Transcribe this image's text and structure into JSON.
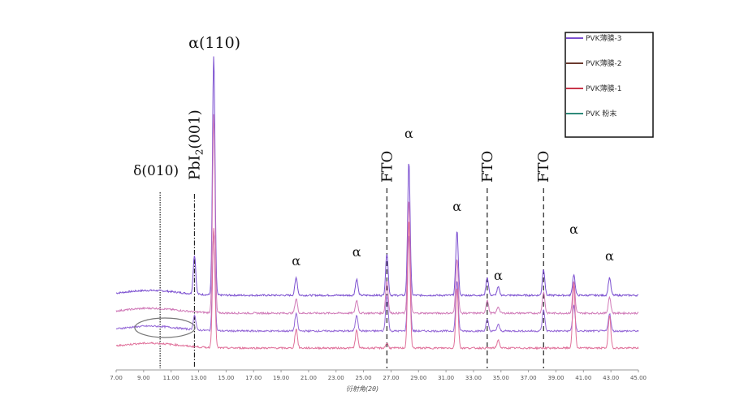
{
  "chart_data": {
    "type": "line",
    "title": "",
    "xlabel": "衍射角(2θ)",
    "ylabel": "",
    "xlim": [
      7,
      45
    ],
    "xticks": [
      "7.00",
      "9.00",
      "11.00",
      "13.00",
      "15.00",
      "17.00",
      "19.00",
      "21.00",
      "23.00",
      "25.00",
      "27.00",
      "29.00",
      "31.00",
      "33.00",
      "35.00",
      "37.00",
      "39.00",
      "41.00",
      "43.00",
      "45.00"
    ],
    "grid": false,
    "legend_position": "top-right",
    "series": [
      {
        "name": "PVK薄膜-3",
        "color": "#7b4fd0",
        "offset": 3,
        "peaks": [
          [
            12.7,
            48
          ],
          [
            14.1,
            295
          ],
          [
            20.1,
            22
          ],
          [
            24.5,
            20
          ],
          [
            26.7,
            52
          ],
          [
            28.3,
            165
          ],
          [
            31.8,
            80
          ],
          [
            34.0,
            22
          ],
          [
            34.8,
            10
          ],
          [
            38.1,
            32
          ],
          [
            40.3,
            26
          ],
          [
            42.9,
            22
          ]
        ]
      },
      {
        "name": "PVK薄膜-2",
        "color": "#d07ab8",
        "offset": 2,
        "peaks": [
          [
            14.1,
            245
          ],
          [
            20.1,
            18
          ],
          [
            24.5,
            16
          ],
          [
            26.7,
            40
          ],
          [
            28.3,
            140
          ],
          [
            31.8,
            68
          ],
          [
            34.0,
            16
          ],
          [
            34.8,
            8
          ],
          [
            38.1,
            26
          ],
          [
            40.3,
            40
          ],
          [
            42.9,
            20
          ]
        ]
      },
      {
        "name": "PVK薄膜-1",
        "color": "#9467d6",
        "offset": 1,
        "peaks": [
          [
            12.7,
            18
          ],
          [
            14.1,
            125
          ],
          [
            20.1,
            22
          ],
          [
            24.5,
            20
          ],
          [
            26.7,
            45
          ],
          [
            28.3,
            120
          ],
          [
            31.8,
            62
          ],
          [
            34.0,
            14
          ],
          [
            34.8,
            8
          ],
          [
            38.1,
            26
          ],
          [
            40.3,
            32
          ],
          [
            42.9,
            22
          ]
        ]
      },
      {
        "name": "PVK 粉末",
        "color": "#e0709a",
        "offset": 0,
        "peaks": [
          [
            14.1,
            148
          ],
          [
            20.1,
            24
          ],
          [
            24.5,
            22
          ],
          [
            26.7,
            6
          ],
          [
            28.3,
            158
          ],
          [
            31.8,
            75
          ],
          [
            34.8,
            10
          ],
          [
            40.3,
            80
          ],
          [
            42.9,
            40
          ]
        ]
      }
    ],
    "annotations": [
      {
        "text": "α(110)",
        "x": 14.1,
        "level": 1
      },
      {
        "text": "PbI",
        "sub": "2",
        "suffix": "(001)",
        "x": 12.7,
        "rotated": true
      },
      {
        "text": "δ(010)",
        "x": 10.2,
        "level": 0
      },
      {
        "text": "FTO",
        "x": 26.7,
        "rotated": true
      },
      {
        "text": "FTO",
        "x": 34.0,
        "rotated": true
      },
      {
        "text": "FTO",
        "x": 38.1,
        "rotated": true
      },
      {
        "text": "α",
        "x": 20.1
      },
      {
        "text": "α",
        "x": 24.5
      },
      {
        "text": "α",
        "x": 28.3
      },
      {
        "text": "α",
        "x": 31.8
      },
      {
        "text": "α",
        "x": 34.8
      },
      {
        "text": "α",
        "x": 40.3
      },
      {
        "text": "α",
        "x": 42.9
      }
    ],
    "reference_lines": [
      {
        "x": 10.2,
        "style": "dotted"
      },
      {
        "x": 12.7,
        "style": "dashdot"
      },
      {
        "x": 26.7,
        "style": "dashed"
      },
      {
        "x": 34.0,
        "style": "dashed"
      },
      {
        "x": 38.1,
        "style": "dashed"
      }
    ],
    "highlight_ellipse_center_x": 8.3
  }
}
